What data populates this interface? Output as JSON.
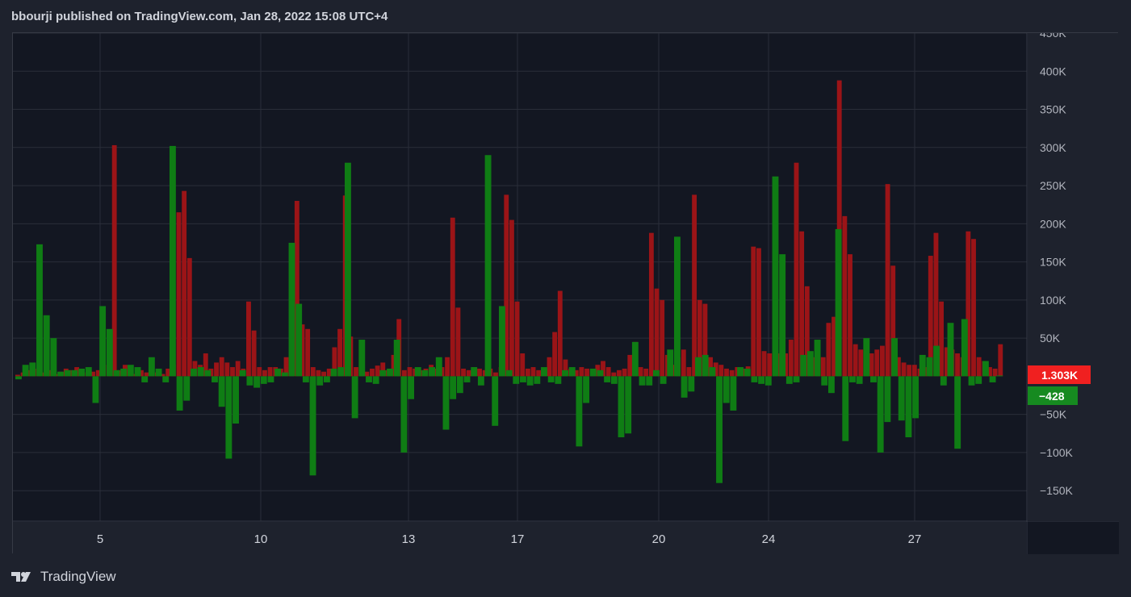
{
  "header": {
    "text": "bbourji published on TradingView.com, Jan 28, 2022 15:08 UTC+4"
  },
  "footer": {
    "brand": "TradingView",
    "logo_icon": "tradingview-logo-icon"
  },
  "colors": {
    "red": "#9b1417",
    "green": "#0f7d14",
    "grid": "#2a2e39",
    "bg": "#131722",
    "axis_text": "#b2b5be",
    "label_red": "#f02020",
    "label_green": "#168a20"
  },
  "chart_data": {
    "type": "bar",
    "y_axis": {
      "min": -190000,
      "max": 450000,
      "ticks": [
        450000,
        400000,
        350000,
        300000,
        250000,
        200000,
        150000,
        100000,
        50000,
        -50000,
        -100000,
        -150000
      ],
      "tick_labels": [
        "450K",
        "400K",
        "350K",
        "300K",
        "250K",
        "200K",
        "150K",
        "100K",
        "50K",
        "−50K",
        "−100K",
        "−150K"
      ]
    },
    "x_axis": {
      "tick_labels": [
        "5",
        "10",
        "13",
        "17",
        "20",
        "24",
        "27"
      ]
    },
    "series": [
      {
        "color": "red",
        "values": [
          2000,
          5000,
          8000,
          10000,
          12000,
          5000,
          8000,
          3000,
          6000,
          10000,
          8000,
          12000,
          6000,
          5000,
          6000,
          8000,
          15000,
          20000,
          303000,
          8000,
          15000,
          5000,
          3000,
          8000,
          5000,
          6000,
          5000,
          3000,
          10000,
          15000,
          215000,
          243000,
          155000,
          20000,
          15000,
          30000,
          10000,
          18000,
          25000,
          18000,
          12000,
          20000,
          10000,
          98000,
          60000,
          12000,
          8000,
          12000,
          12000,
          10000,
          25000,
          53000,
          230000,
          68000,
          62000,
          12000,
          8000,
          6000,
          10000,
          38000,
          62000,
          237000,
          52000,
          12000,
          8000,
          6000,
          10000,
          14000,
          18000,
          8000,
          28000,
          75000,
          8000,
          12000,
          10000,
          8000,
          10000,
          15000,
          10000,
          12000,
          25000,
          208000,
          90000,
          10000,
          8000,
          12000,
          10000,
          8000,
          10000,
          5000,
          12000,
          238000,
          205000,
          98000,
          30000,
          10000,
          12000,
          8000,
          10000,
          25000,
          58000,
          112000,
          22000,
          10000,
          8000,
          12000,
          10000,
          8000,
          15000,
          20000,
          12000,
          5000,
          8000,
          10000,
          28000,
          45000,
          12000,
          10000,
          188000,
          115000,
          100000,
          28000,
          15000,
          25000,
          35000,
          12000,
          238000,
          100000,
          95000,
          25000,
          18000,
          15000,
          10000,
          8000,
          12000,
          10000,
          13000,
          170000,
          168000,
          33000,
          30000,
          28000,
          30000,
          30000,
          48000,
          280000,
          190000,
          118000,
          25000,
          15000,
          25000,
          70000,
          78000,
          388000,
          210000,
          160000,
          42000,
          35000,
          35000,
          30000,
          35000,
          40000,
          252000,
          145000,
          25000,
          18000,
          15000,
          15000,
          10000,
          12000,
          158000,
          188000,
          98000,
          38000,
          35000,
          30000,
          25000,
          190000,
          180000,
          25000,
          20000,
          12000,
          10000,
          42000
        ]
      },
      {
        "color": "green",
        "values": [
          -4000,
          15000,
          18000,
          173000,
          80000,
          50000,
          6000,
          8000,
          8000,
          10000,
          12000,
          -35000,
          92000,
          62000,
          8000,
          10000,
          15000,
          12000,
          -8000,
          25000,
          10000,
          -8000,
          302000,
          -45000,
          -32000,
          10000,
          12000,
          8000,
          -8000,
          -40000,
          -108000,
          -62000,
          8000,
          -12000,
          -15000,
          -10000,
          -8000,
          10000,
          5000,
          175000,
          95000,
          -8000,
          -130000,
          -12000,
          -8000,
          10000,
          12000,
          280000,
          -55000,
          48000,
          -8000,
          -10000,
          8000,
          10000,
          48000,
          -100000,
          -30000,
          12000,
          8000,
          12000,
          25000,
          -70000,
          -30000,
          -22000,
          -8000,
          12000,
          -12000,
          290000,
          -65000,
          92000,
          8000,
          -10000,
          -8000,
          -12000,
          -10000,
          12000,
          -8000,
          -10000,
          8000,
          12000,
          -92000,
          -35000,
          10000,
          8000,
          -8000,
          -10000,
          -80000,
          -75000,
          45000,
          -12000,
          -12000,
          8000,
          -10000,
          35000,
          183000,
          -28000,
          -20000,
          25000,
          28000,
          12000,
          -140000,
          -35000,
          -45000,
          12000,
          10000,
          -8000,
          -10000,
          -12000,
          262000,
          160000,
          -10000,
          -8000,
          28000,
          33000,
          48000,
          -12000,
          -22000,
          193000,
          -85000,
          -8000,
          -10000,
          50000,
          -8000,
          -100000,
          -60000,
          50000,
          -58000,
          -80000,
          -55000,
          28000,
          25000,
          40000,
          -12000,
          70000,
          -95000,
          75000,
          -12000,
          -10000,
          20000,
          -8000,
          1000
        ]
      }
    ],
    "last_values": {
      "red_label": "1.303K",
      "green_label": "−428"
    }
  }
}
